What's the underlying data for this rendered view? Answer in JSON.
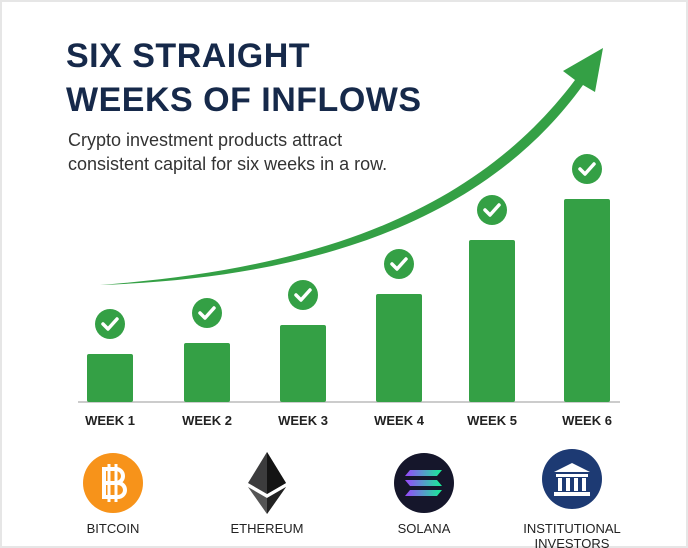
{
  "chart_data": {
    "type": "bar",
    "title": "SIX STRAIGHT WEEKS OF INFLOWS",
    "subtitle": "Crypto investment products attract consistent capital for six weeks in a row.",
    "categories": [
      "WEEK 1",
      "WEEK 2",
      "WEEK 3",
      "WEEK 4",
      "WEEK 5",
      "WEEK 6"
    ],
    "values": [
      48,
      59,
      77,
      108,
      162,
      203
    ],
    "color": "#34a045"
  },
  "logos": [
    "BITCOIN",
    "ETHEREUM",
    "SOLANA",
    "INSTITUTIONAL INVESTORS"
  ]
}
